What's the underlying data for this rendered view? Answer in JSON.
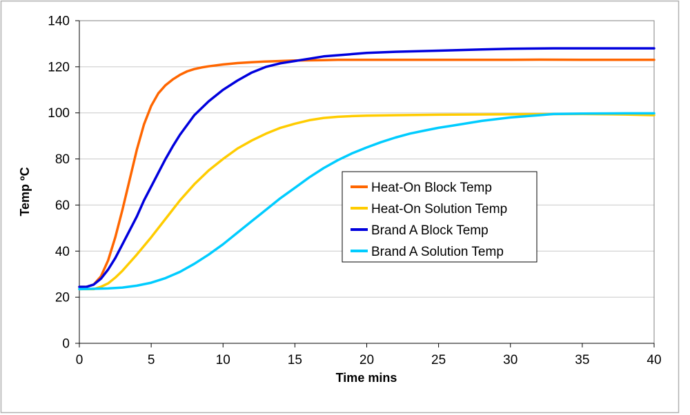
{
  "chart_data": {
    "type": "line",
    "title": "",
    "xlabel": "Time mins",
    "ylabel": "Temp ºC",
    "xlim": [
      0,
      40
    ],
    "ylim": [
      0,
      140
    ],
    "xticks": [
      "0",
      "5",
      "10",
      "15",
      "20",
      "25",
      "30",
      "35",
      "40"
    ],
    "yticks": [
      "0",
      "20",
      "40",
      "60",
      "80",
      "100",
      "120",
      "140"
    ],
    "grid": "horizontal",
    "legend_position": "center-right",
    "series": [
      {
        "name": "Heat-On Block Temp",
        "color": "#ff6600",
        "x": [
          0,
          0.5,
          1,
          1.5,
          2,
          2.5,
          3,
          3.5,
          4,
          4.5,
          5,
          5.5,
          6,
          6.5,
          7,
          7.5,
          8,
          8.5,
          9,
          10,
          11,
          12,
          13,
          14,
          15,
          16,
          17,
          18,
          20,
          22,
          25,
          28,
          30,
          32,
          35,
          38,
          40
        ],
        "y": [
          24.5,
          24.5,
          25.5,
          29,
          36,
          46,
          58,
          71,
          84,
          95,
          103,
          108.5,
          112,
          114.5,
          116.5,
          118,
          119,
          119.7,
          120.2,
          121,
          121.6,
          122,
          122.3,
          122.5,
          122.7,
          122.8,
          122.9,
          123,
          123,
          123,
          123,
          123,
          123,
          123.1,
          123,
          123,
          123
        ]
      },
      {
        "name": "Heat-On Solution Temp",
        "color": "#ffcc00",
        "x": [
          0,
          1,
          1.5,
          2,
          2.5,
          3,
          3.5,
          4,
          5,
          6,
          7,
          8,
          9,
          10,
          11,
          12,
          13,
          14,
          15,
          16,
          17,
          18,
          19,
          20,
          22,
          25,
          30,
          35,
          38,
          40
        ],
        "y": [
          23.5,
          23.5,
          24.5,
          26,
          28.5,
          31.5,
          35,
          38.5,
          46,
          54,
          62,
          69,
          75,
          80,
          84.5,
          88,
          91,
          93.5,
          95.3,
          96.8,
          97.8,
          98.3,
          98.6,
          98.8,
          99,
          99.2,
          99.4,
          99.5,
          99.3,
          99
        ]
      },
      {
        "name": "Brand A Block Temp",
        "color": "#0000dd",
        "x": [
          0,
          0.5,
          1,
          1.5,
          2,
          2.5,
          3,
          3.5,
          4,
          4.5,
          5,
          5.5,
          6,
          6.5,
          7,
          8,
          9,
          10,
          11,
          12,
          13,
          14,
          15,
          16,
          17,
          18,
          20,
          22,
          25,
          28,
          30,
          33,
          35,
          38,
          40
        ],
        "y": [
          24.5,
          24.5,
          25.5,
          28,
          32,
          37,
          43,
          49,
          55,
          62,
          68,
          74,
          80,
          85.5,
          90.5,
          99,
          105,
          110,
          114,
          117.5,
          120,
          121.5,
          122.5,
          123.5,
          124.5,
          125,
          126,
          126.5,
          127,
          127.5,
          127.8,
          128,
          128,
          128,
          128
        ]
      },
      {
        "name": "Brand A Solution Temp",
        "color": "#00ccff",
        "x": [
          0,
          2,
          3,
          4,
          5,
          6,
          7,
          8,
          9,
          10,
          11,
          12,
          13,
          14,
          15,
          16,
          17,
          18,
          19,
          20,
          21,
          22,
          23,
          24,
          25,
          26,
          28,
          30,
          32,
          33,
          35,
          38,
          40
        ],
        "y": [
          23.5,
          23.8,
          24.2,
          25,
          26.3,
          28.3,
          31,
          34.5,
          38.5,
          43,
          48,
          53,
          58,
          63,
          67.5,
          72,
          76,
          79.5,
          82.5,
          85,
          87.3,
          89.3,
          91,
          92.3,
          93.5,
          94.5,
          96.5,
          98,
          99,
          99.5,
          99.7,
          99.8,
          99.8
        ]
      }
    ]
  }
}
